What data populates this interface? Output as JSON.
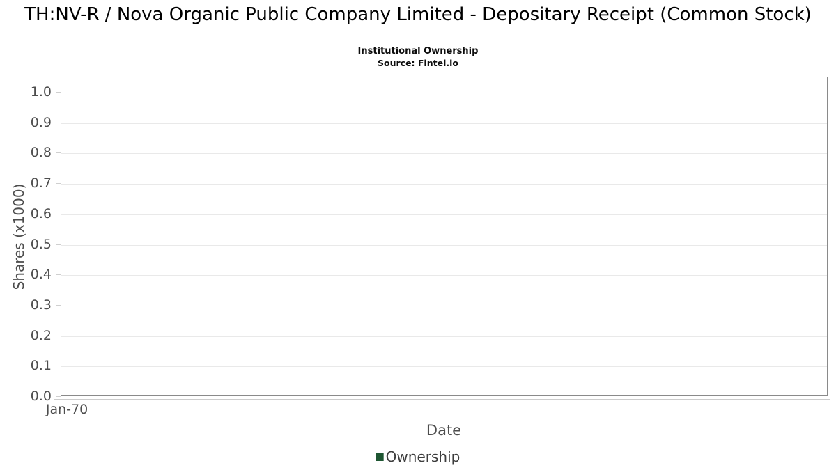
{
  "chart_data": {
    "type": "line",
    "title": "TH:NV-R / Nova Organic Public Company Limited - Depositary Receipt (Common Stock)",
    "subtitle": "Institutional Ownership",
    "source": "Source: Fintel.io",
    "xlabel": "Date",
    "ylabel": "Shares (x1000)",
    "x": [],
    "series": [
      {
        "name": "Ownership",
        "color": "#1e5632",
        "values": []
      }
    ],
    "xticks": [
      "Jan-70"
    ],
    "yticks": [
      "0.0",
      "0.1",
      "0.2",
      "0.3",
      "0.4",
      "0.5",
      "0.6",
      "0.7",
      "0.8",
      "0.9",
      "1.0"
    ],
    "ylim": [
      0.0,
      1.05
    ],
    "grid": true,
    "legend_position": "bottom",
    "colors": {
      "grid_line": "#e9e9e9",
      "plot_border": "#8a8a8a",
      "tick_text": "#4d4d4d"
    }
  }
}
